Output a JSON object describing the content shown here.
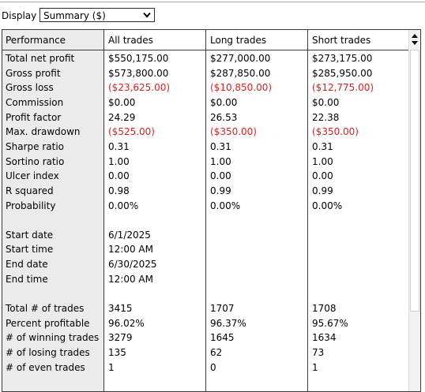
{
  "display": {
    "label": "Display",
    "selected": "Summary ($)"
  },
  "table": {
    "headers": [
      "Performance",
      "All trades",
      "Long trades",
      "Short trades"
    ],
    "rows": [
      {
        "label": "Total net profit",
        "values": [
          "$550,175.00",
          "$277,000.00",
          "$273,175.00"
        ],
        "negative": false
      },
      {
        "label": "Gross profit",
        "values": [
          "$573,800.00",
          "$287,850.00",
          "$285,950.00"
        ],
        "negative": false
      },
      {
        "label": "Gross loss",
        "values": [
          "($23,625.00)",
          "($10,850.00)",
          "($12,775.00)"
        ],
        "negative": true
      },
      {
        "label": "Commission",
        "values": [
          "$0.00",
          "$0.00",
          "$0.00"
        ],
        "negative": false
      },
      {
        "label": "Profit factor",
        "values": [
          "24.29",
          "26.53",
          "22.38"
        ],
        "negative": false
      },
      {
        "label": "Max. drawdown",
        "values": [
          "($525.00)",
          "($350.00)",
          "($350.00)"
        ],
        "negative": true
      },
      {
        "label": "Sharpe ratio",
        "values": [
          "0.31",
          "0.31",
          "0.31"
        ],
        "negative": false
      },
      {
        "label": "Sortino ratio",
        "values": [
          "1.00",
          "1.00",
          "1.00"
        ],
        "negative": false
      },
      {
        "label": "Ulcer index",
        "values": [
          "0.00",
          "0.00",
          "0.00"
        ],
        "negative": false
      },
      {
        "label": "R squared",
        "values": [
          "0.98",
          "0.99",
          "0.99"
        ],
        "negative": false
      },
      {
        "label": "Probability",
        "values": [
          "0.00%",
          "0.00%",
          "0.00%"
        ],
        "negative": false
      },
      {
        "label": "",
        "values": [
          "",
          "",
          ""
        ],
        "negative": false
      },
      {
        "label": "Start date",
        "values": [
          "6/1/2025",
          "",
          ""
        ],
        "negative": false
      },
      {
        "label": "Start time",
        "values": [
          "12:00 AM",
          "",
          ""
        ],
        "negative": false
      },
      {
        "label": "End date",
        "values": [
          "6/30/2025",
          "",
          ""
        ],
        "negative": false
      },
      {
        "label": "End time",
        "values": [
          "12:00 AM",
          "",
          ""
        ],
        "negative": false
      },
      {
        "label": "",
        "values": [
          "",
          "",
          ""
        ],
        "negative": false
      },
      {
        "label": "Total # of trades",
        "values": [
          "3415",
          "1707",
          "1708"
        ],
        "negative": false
      },
      {
        "label": "Percent profitable",
        "values": [
          "96.02%",
          "96.37%",
          "95.67%"
        ],
        "negative": false
      },
      {
        "label": "# of winning trades",
        "values": [
          "3279",
          "1645",
          "1634"
        ],
        "negative": false
      },
      {
        "label": "# of losing trades",
        "values": [
          "135",
          "62",
          "73"
        ],
        "negative": false
      },
      {
        "label": "# of even trades",
        "values": [
          "1",
          "0",
          "1"
        ],
        "negative": false
      }
    ]
  },
  "colors": {
    "negative": "#e02020",
    "first_column_bg": "#ebebeb",
    "border": "#3a3a3a"
  },
  "icons": {
    "dropdown": "chevron-down-icon",
    "scroll": "scroll-up-down-icon"
  }
}
